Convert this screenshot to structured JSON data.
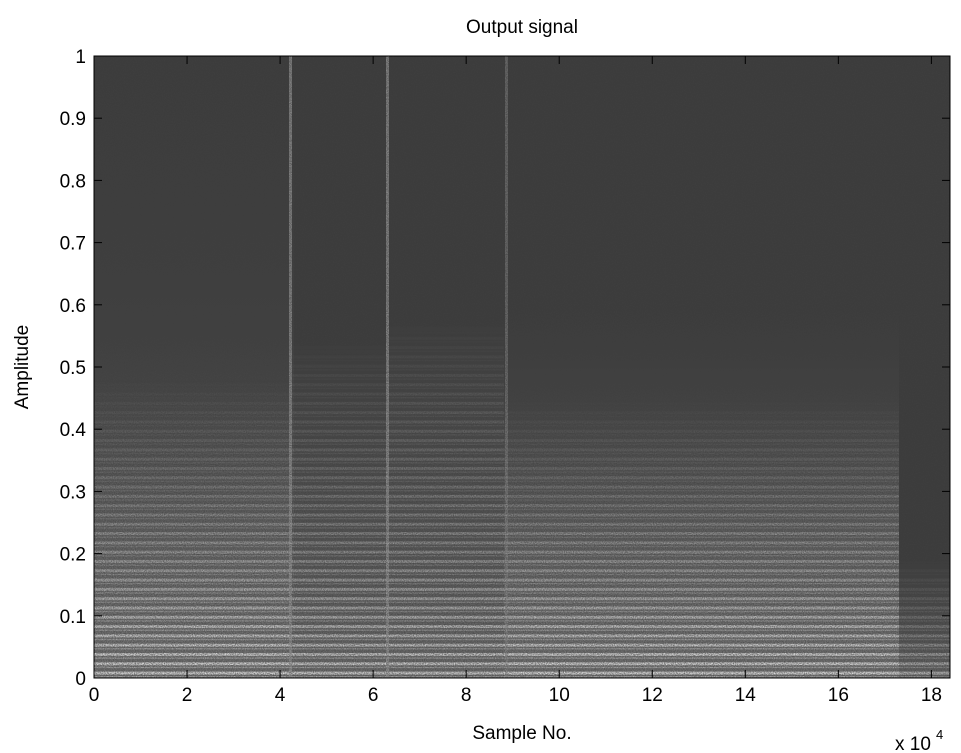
{
  "chart_data": {
    "type": "spectrogram",
    "title": "Output signal",
    "x_label": "Sample No.",
    "y_label": "Amplitude",
    "x_multiplier": {
      "base": "x 10",
      "exponent": "4"
    },
    "xlim": [
      0,
      18.4
    ],
    "ylim": [
      0,
      1
    ],
    "xticks": [
      0,
      2,
      4,
      6,
      8,
      10,
      12,
      14,
      16,
      18
    ],
    "yticks": [
      0,
      0.1,
      0.2,
      0.3,
      0.4,
      0.5,
      0.6,
      0.7,
      0.8,
      0.9,
      1
    ],
    "colormap": "gray"
  }
}
